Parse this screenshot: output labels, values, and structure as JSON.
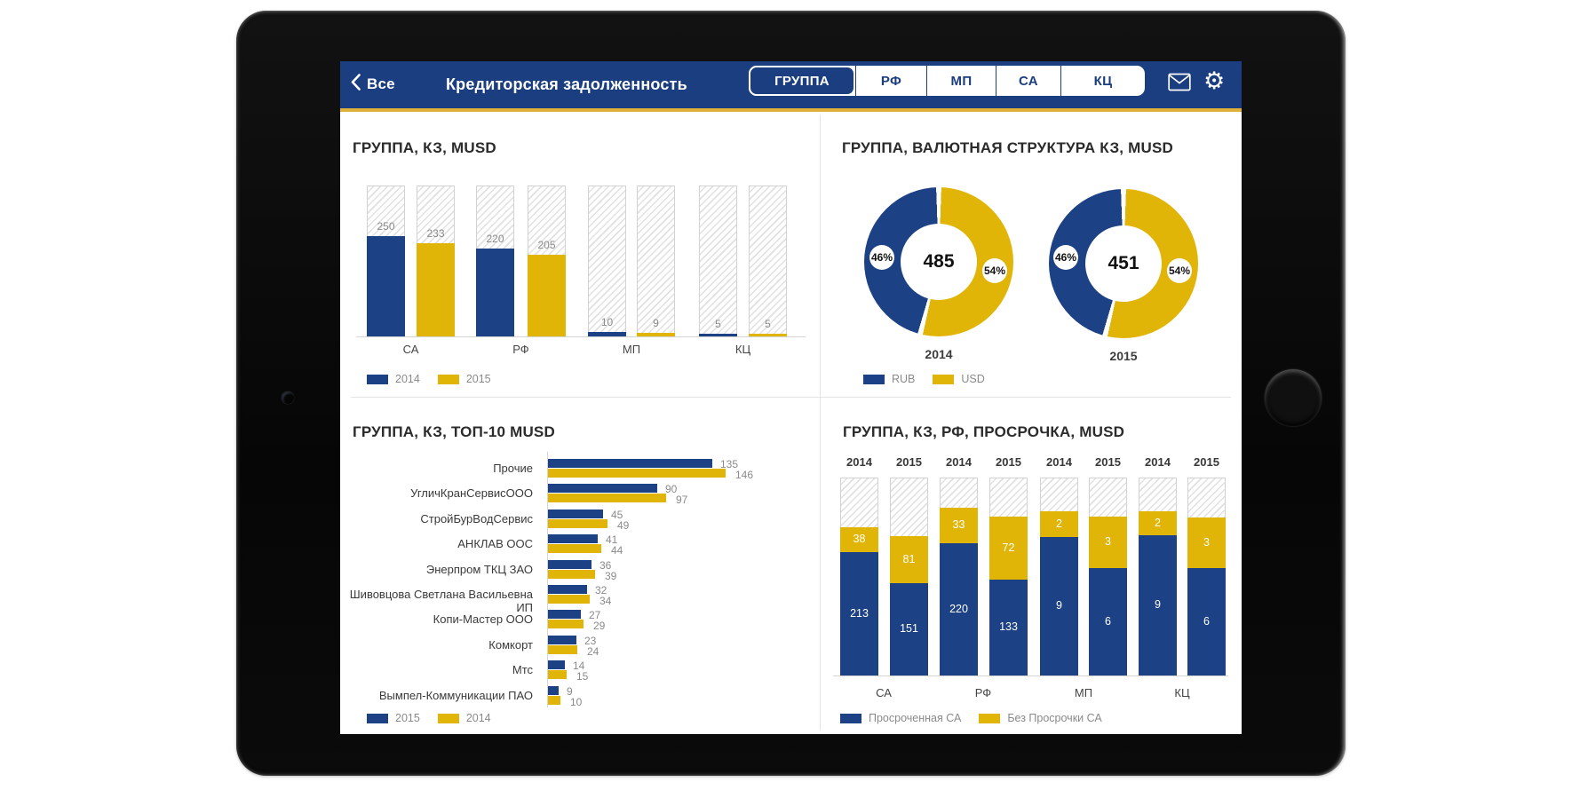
{
  "header": {
    "back_label": "Все",
    "title": "Кредиторская задолженность",
    "tabs": [
      {
        "label": "ГРУППА",
        "selected": true
      },
      {
        "label": "РФ",
        "selected": false
      },
      {
        "label": "МП",
        "selected": false
      },
      {
        "label": "СА",
        "selected": false
      },
      {
        "label": "КЦ",
        "selected": false
      }
    ],
    "icons": {
      "mail": "mail-icon",
      "settings": "gear-icon",
      "settings_glyph": "⚙",
      "back": "chevron-left-icon"
    }
  },
  "colors": {
    "blue": "#1c4185",
    "yellow": "#e1b507",
    "header_blue": "#1b3e80",
    "gold_line": "#e0b13a",
    "gray_text": "#8a8a8a"
  },
  "chart_data": [
    {
      "id": "kz_group",
      "type": "bar",
      "title": "ГРУППА, КЗ, MUSD",
      "categories": [
        "СА",
        "РФ",
        "МП",
        "КЦ"
      ],
      "series": [
        {
          "name": "2014",
          "color_key": "blue",
          "values": [
            250,
            220,
            10,
            5
          ]
        },
        {
          "name": "2015",
          "color_key": "yellow",
          "values": [
            233,
            205,
            9,
            5
          ]
        }
      ],
      "legend": [
        {
          "label": "2014",
          "color_key": "blue"
        },
        {
          "label": "2015",
          "color_key": "yellow"
        }
      ],
      "ylim": [
        0,
        380
      ],
      "grid": false,
      "hatch_full_columns": true
    },
    {
      "id": "currency_structure",
      "type": "pie",
      "title": "ГРУППА, ВАЛЮТНАЯ СТРУКТУРА КЗ, MUSD",
      "donuts": [
        {
          "label": "2014",
          "center_value": "485",
          "slices": [
            {
              "name": "RUB",
              "pct": 46
            },
            {
              "name": "USD",
              "pct": 54
            }
          ]
        },
        {
          "label": "2015",
          "center_value": "451",
          "slices": [
            {
              "name": "RUB",
              "pct": 46
            },
            {
              "name": "USD",
              "pct": 54
            }
          ]
        }
      ],
      "legend": [
        {
          "label": "RUB",
          "color_key": "blue"
        },
        {
          "label": "USD",
          "color_key": "yellow"
        }
      ]
    },
    {
      "id": "top10",
      "type": "bar",
      "orientation": "horizontal",
      "title": "ГРУППА, КЗ, ТОП-10 MUSD",
      "categories": [
        "Прочие",
        "УгличКранСервисООО",
        "СтройБурВодСервис",
        "АНКЛАВ ООС",
        "Энерпром ТКЦ ЗАО",
        "Шивовцова Светлана Васильевна ИП",
        "Копи-Мастер ООО",
        "Комкорт",
        "Мтс",
        "Вымпел-Коммуникации ПАО"
      ],
      "series": [
        {
          "name": "2015",
          "color_key": "blue",
          "values": [
            135,
            90,
            45,
            41,
            36,
            32,
            27,
            23,
            14,
            9
          ]
        },
        {
          "name": "2014",
          "color_key": "yellow",
          "values": [
            146,
            97,
            49,
            44,
            39,
            34,
            29,
            24,
            15,
            10
          ]
        }
      ],
      "legend": [
        {
          "label": "2015",
          "color_key": "blue"
        },
        {
          "label": "2014",
          "color_key": "yellow"
        }
      ],
      "xlim": [
        0,
        160
      ]
    },
    {
      "id": "overdue",
      "type": "stacked_bar",
      "title": "ГРУППА, КЗ,  РФ, ПРОСРОЧКА, MUSD",
      "categories": [
        "СА",
        "РФ",
        "МП",
        "КЦ"
      ],
      "series_names": {
        "blue": "Просроченная СА",
        "yellow": "Без Просрочки СА"
      },
      "bars": [
        {
          "category": "СА",
          "year": "2014",
          "blue": 213,
          "yellow": 38,
          "blue_h": 139,
          "yellow_h": 28
        },
        {
          "category": "СА",
          "year": "2015",
          "blue": 151,
          "yellow": 81,
          "blue_h": 104,
          "yellow_h": 53
        },
        {
          "category": "РФ",
          "year": "2014",
          "blue": 220,
          "yellow": 33,
          "blue_h": 149,
          "yellow_h": 40
        },
        {
          "category": "РФ",
          "year": "2015",
          "blue": 133,
          "yellow": 72,
          "blue_h": 108,
          "yellow_h": 71
        },
        {
          "category": "МП",
          "year": "2014",
          "blue": 9,
          "yellow": 2,
          "blue_h": 156,
          "yellow_h": 29
        },
        {
          "category": "МП",
          "year": "2015",
          "blue": 6,
          "yellow": 3,
          "blue_h": 121,
          "yellow_h": 58
        },
        {
          "category": "КЦ",
          "year": "2014",
          "blue": 9,
          "yellow": 2,
          "blue_h": 158,
          "yellow_h": 27
        },
        {
          "category": "КЦ",
          "year": "2015",
          "blue": 6,
          "yellow": 3,
          "blue_h": 121,
          "yellow_h": 57
        }
      ],
      "legend": [
        {
          "label": "Просроченная СА",
          "color_key": "blue"
        },
        {
          "label": "Без Просрочки СА",
          "color_key": "yellow"
        }
      ],
      "hatch_full_columns": true
    }
  ]
}
